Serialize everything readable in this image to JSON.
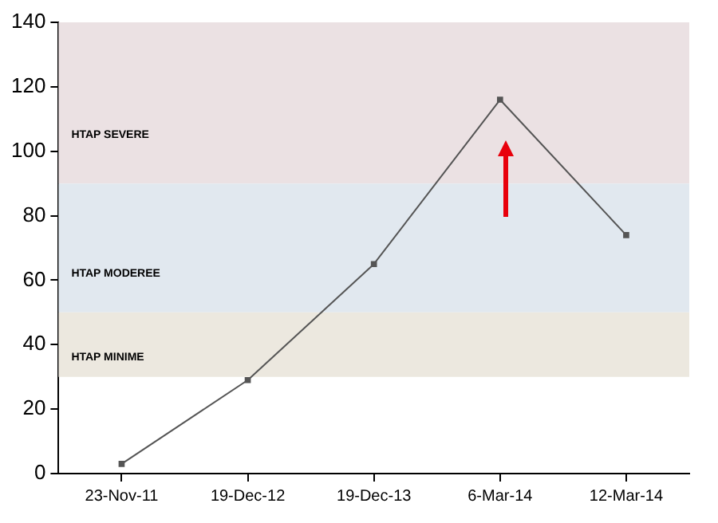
{
  "chart_data": {
    "type": "line",
    "categories": [
      "23-Nov-11",
      "19-Dec-12",
      "19-Dec-13",
      "6-Mar-14",
      "12-Mar-14"
    ],
    "series": [
      {
        "color": "#555555",
        "values": [
          3,
          29,
          65,
          116,
          74
        ]
      }
    ],
    "ylim": [
      0,
      140
    ],
    "yticks": [
      0,
      20,
      40,
      60,
      80,
      100,
      120,
      140
    ],
    "grid": false,
    "legend": false,
    "marker": "square",
    "line_style": "solid",
    "bands": [
      {
        "axis": "y",
        "from": 90,
        "to": 140,
        "label": "HTAP SEVERE",
        "color": "#ebe1e3"
      },
      {
        "axis": "y",
        "from": 50,
        "to": 90,
        "label": "HTAP MODEREE",
        "color": "#e1e8ef"
      },
      {
        "axis": "y",
        "from": 30,
        "to": 50,
        "label": "HTAP MINIME",
        "color": "#ece8df"
      }
    ]
  }
}
